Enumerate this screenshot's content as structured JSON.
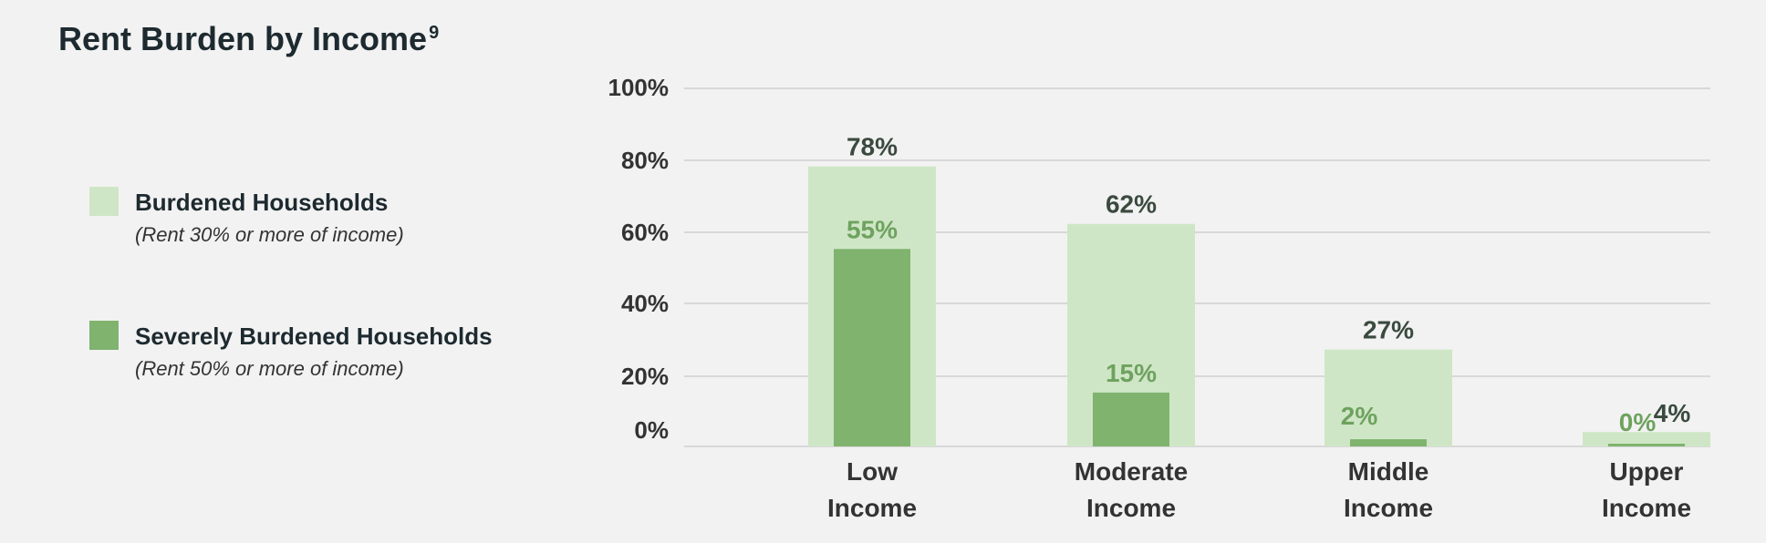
{
  "title": "Rent Burden by Income",
  "title_footnote": "9",
  "legend": [
    {
      "label": "Burdened Households",
      "sub": "(Rent 30% or more of income)",
      "color": "#cfe6c6"
    },
    {
      "label": "Severely Burdened Households",
      "sub": "(Rent 50% or more of income)",
      "color": "#7fb36e"
    }
  ],
  "chart_data": {
    "type": "bar",
    "categories": [
      [
        "Low",
        "Income"
      ],
      [
        "Moderate",
        "Income"
      ],
      [
        "Middle",
        "Income"
      ],
      [
        "Upper",
        "Income"
      ]
    ],
    "series": [
      {
        "name": "Burdened Households",
        "values": [
          78,
          62,
          27,
          4
        ],
        "labels": [
          "78%",
          "62%",
          "27%",
          "4%"
        ],
        "color": "#cfe6c6"
      },
      {
        "name": "Severely Burdened Households",
        "values": [
          55,
          15,
          2,
          0
        ],
        "labels": [
          "55%",
          "15%",
          "2%",
          "0%"
        ],
        "color": "#7fb36e"
      }
    ],
    "y_ticks": [
      {
        "value": 0,
        "label": "0%"
      },
      {
        "value": 20,
        "label": "20%"
      },
      {
        "value": 40,
        "label": "40%"
      },
      {
        "value": 60,
        "label": "60%"
      },
      {
        "value": 80,
        "label": "80%"
      },
      {
        "value": 100,
        "label": "100%"
      }
    ],
    "ylim": [
      0,
      100
    ],
    "grid": true,
    "legend_position": "left"
  }
}
